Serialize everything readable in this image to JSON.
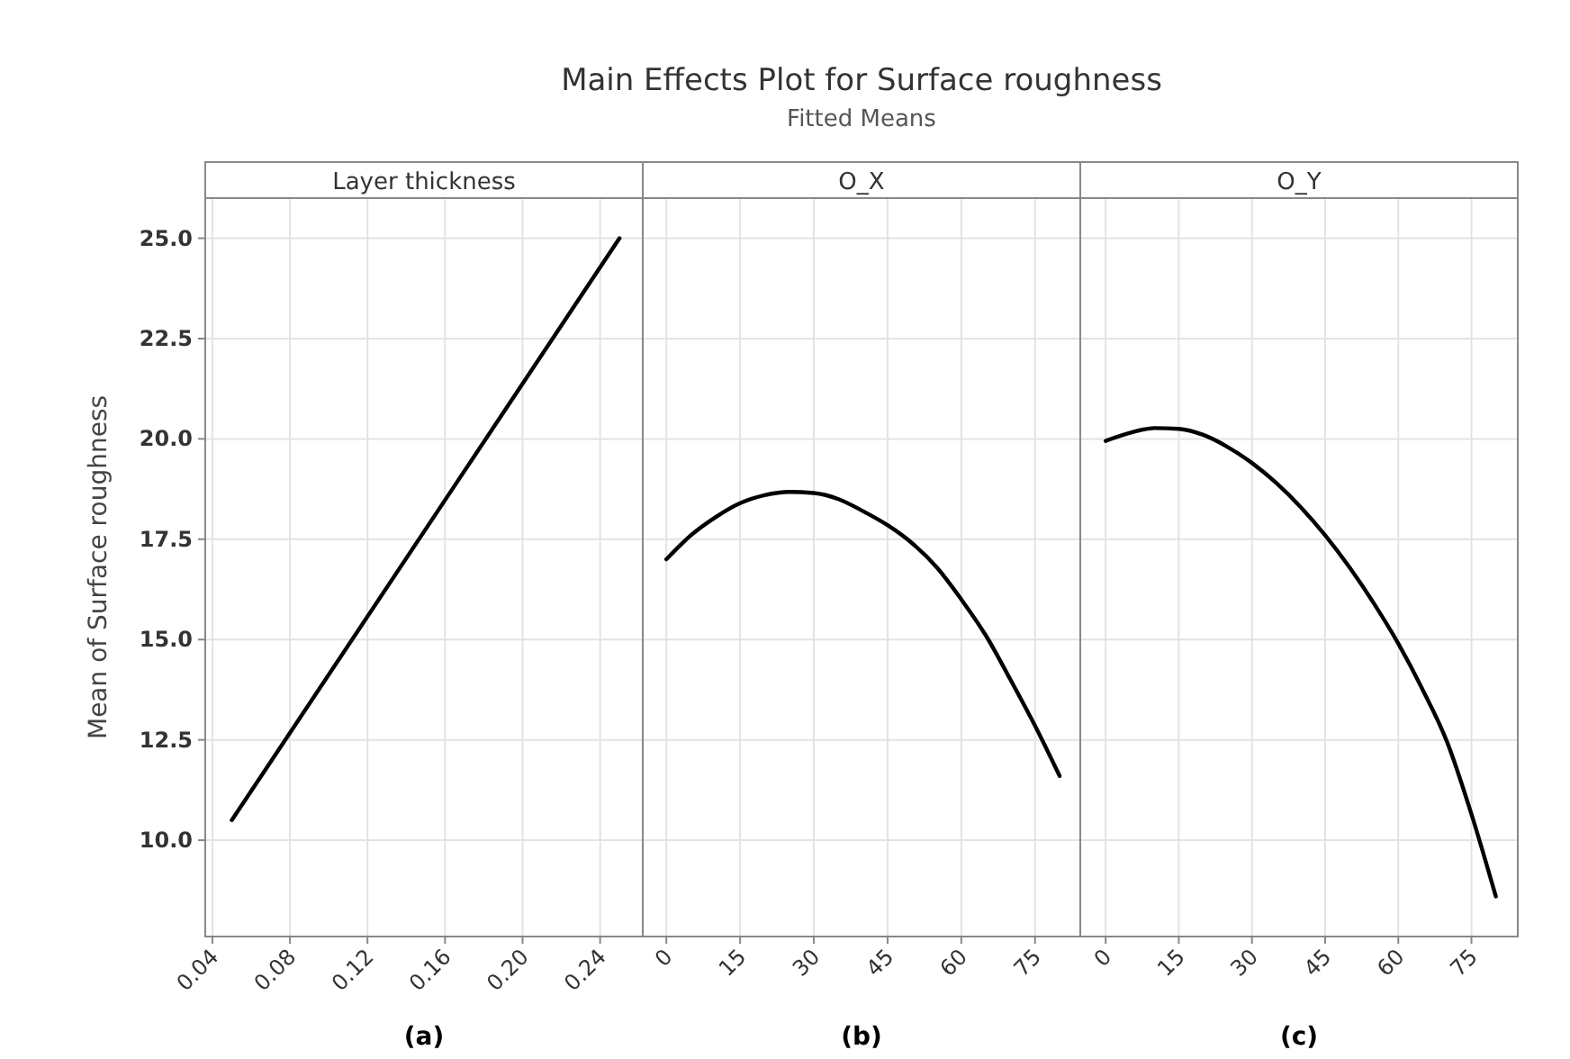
{
  "chart_data": [
    {
      "type": "other",
      "title": "Main Effects Plot for Surface roughness",
      "subtitle": "Fitted Means"
    },
    {
      "type": "line",
      "xlabel": "Layer thickness",
      "ylabel": "Mean of Surface roughness",
      "annotations": [
        "(a)"
      ],
      "x": [
        0.05,
        0.25
      ],
      "values": [
        10.5,
        25.0
      ],
      "color": "#000000",
      "xlim": [
        0.0363,
        0.262
      ],
      "xticks": [
        {
          "value": 0.04,
          "label": "0.04"
        },
        {
          "value": 0.08,
          "label": "0.08"
        },
        {
          "value": 0.12,
          "label": "0.12"
        },
        {
          "value": 0.16,
          "label": "0.16"
        },
        {
          "value": 0.2,
          "label": "0.20"
        },
        {
          "value": 0.24,
          "label": "0.24"
        }
      ],
      "ylim": [
        7.6,
        26.0
      ],
      "yticks": [
        {
          "value": 10,
          "label": "10.0"
        },
        {
          "value": 12.5,
          "label": "12.5"
        },
        {
          "value": 15,
          "label": "15.0"
        },
        {
          "value": 17.5,
          "label": "17.5"
        },
        {
          "value": 20,
          "label": "20.0"
        },
        {
          "value": 22.5,
          "label": "22.5"
        },
        {
          "value": 25,
          "label": "25.0"
        }
      ],
      "grid": true,
      "marker": "none",
      "line_style": "solid"
    },
    {
      "type": "line",
      "xlabel": "O_X",
      "annotations": [
        "(b)"
      ],
      "x": [
        0,
        5,
        10,
        15,
        20,
        25,
        30,
        35,
        40,
        45,
        50,
        55,
        60,
        65,
        70,
        75,
        80
      ],
      "values": [
        17.0,
        17.6,
        18.05,
        18.4,
        18.6,
        18.68,
        18.65,
        18.5,
        18.2,
        17.85,
        17.4,
        16.8,
        16.0,
        15.1,
        14.0,
        12.85,
        11.6
      ],
      "color": "#000000",
      "xlim": [
        -4.8,
        84.2
      ],
      "xticks": [
        0,
        15,
        30,
        45,
        60,
        75
      ],
      "ylim": [
        7.6,
        26.0
      ],
      "yticks": [
        10,
        12.5,
        15,
        17.5,
        20,
        22.5,
        25
      ],
      "tick_labels": "x",
      "grid": true,
      "marker": "none",
      "line_style": "solid"
    },
    {
      "type": "line",
      "xlabel": "O_Y",
      "annotations": [
        "(c)"
      ],
      "x": [
        0,
        5,
        10,
        15,
        20,
        25,
        30,
        35,
        40,
        45,
        50,
        55,
        60,
        65,
        70,
        75,
        80
      ],
      "values": [
        19.95,
        20.15,
        20.27,
        20.25,
        20.1,
        19.8,
        19.4,
        18.9,
        18.3,
        17.6,
        16.8,
        15.9,
        14.9,
        13.75,
        12.45,
        10.65,
        8.6
      ],
      "color": "#000000",
      "xlim": [
        -5.2,
        84.5
      ],
      "xticks": [
        0,
        15,
        30,
        45,
        60,
        75
      ],
      "ylim": [
        7.6,
        26.0
      ],
      "yticks": [
        10,
        12.5,
        15,
        17.5,
        20,
        22.5,
        25
      ],
      "tick_labels": "x",
      "grid": true,
      "marker": "none",
      "line_style": "solid"
    }
  ]
}
